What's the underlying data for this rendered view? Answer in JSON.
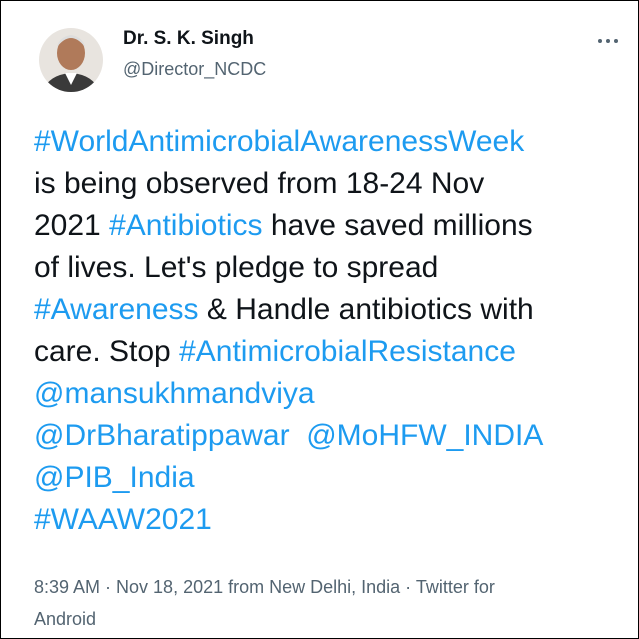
{
  "author": {
    "name": "Dr. S. K. Singh",
    "handle": "@Director_NCDC"
  },
  "body_lines": [
    [
      {
        "text": "#WorldAntimicrobialAwarenessWeek",
        "color": "#1d9bf0"
      }
    ],
    [
      {
        "text": "is being observed from 18-24 Nov",
        "color": "#0f1419"
      }
    ],
    [
      {
        "text": "2021 ",
        "color": "#0f1419"
      },
      {
        "text": "#Antibiotics",
        "color": "#1d9bf0"
      },
      {
        "text": " have saved millions",
        "color": "#0f1419"
      }
    ],
    [
      {
        "text": "of lives. Let's pledge to spread",
        "color": "#0f1419"
      }
    ],
    [
      {
        "text": "#Awareness",
        "color": "#1d9bf0"
      },
      {
        "text": " & Handle antibiotics with",
        "color": "#0f1419"
      }
    ],
    [
      {
        "text": "care. Stop ",
        "color": "#0f1419"
      },
      {
        "text": "#AntimicrobialResistance",
        "color": "#1d9bf0"
      }
    ],
    [
      {
        "text": "@mansukhmandviya",
        "color": "#1d9bf0"
      }
    ],
    [
      {
        "text": "@DrBharatippawar  @MoHFW_INDIA",
        "color": "#1d9bf0"
      }
    ],
    [
      {
        "text": "@PIB_India",
        "color": "#1d9bf0"
      }
    ],
    [
      {
        "text": "#WAAW2021",
        "color": "#1d9bf0"
      }
    ]
  ],
  "meta_lines": [
    "8:39 AM · Nov 18, 2021 from New Delhi, India · Twitter for",
    "Android"
  ]
}
